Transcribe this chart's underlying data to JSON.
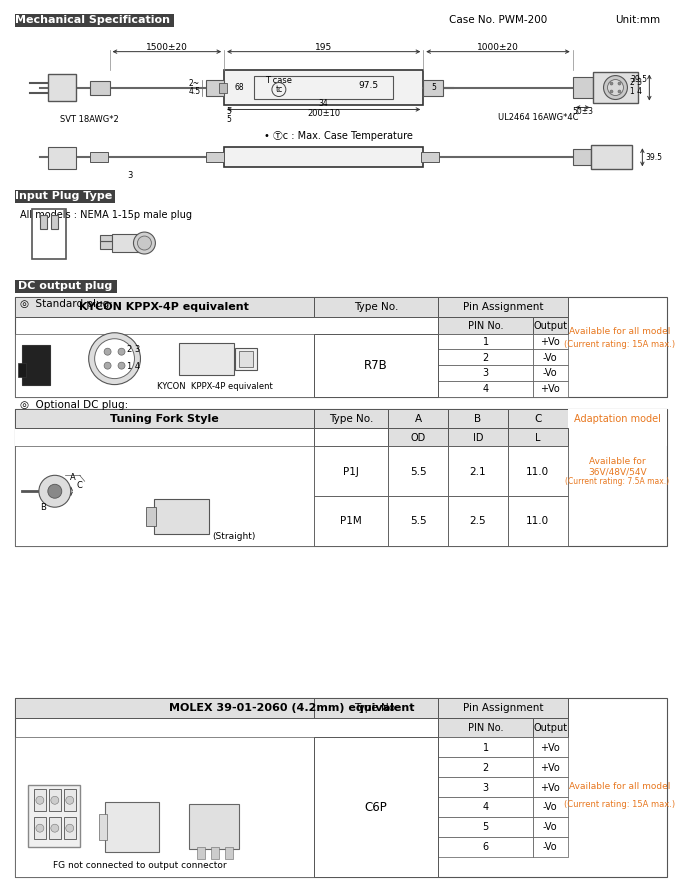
{
  "title_section1": "Mechanical Specification",
  "case_no": "Case No. PWM-200",
  "unit": "Unit:mm",
  "title_section2": "Input Plug Type",
  "input_plug_text": "All models : NEMA 1-15p male plug",
  "title_section3": "DC output plug",
  "standard_plug_label": "◎  Standard plug:",
  "optional_plug_label": "◎  Optional DC plug:",
  "kycon_header": "KYCON KPPX-4P equivalent",
  "kycon_type_no": "R7B",
  "kycon_pin_data": [
    [
      "1",
      "+Vo"
    ],
    [
      "2",
      "-Vo"
    ],
    [
      "3",
      "-Vo"
    ],
    [
      "4",
      "+Vo"
    ]
  ],
  "kycon_avail": "Available for all model",
  "kycon_current": "(Current rating: 15A max.)",
  "tuning_header": "Tuning Fork Style",
  "tuning_cols": [
    "A",
    "B",
    "C"
  ],
  "tuning_subcols": [
    "OD",
    "ID",
    "L"
  ],
  "tuning_data": [
    [
      "P1J",
      "5.5",
      "2.1",
      "11.0"
    ],
    [
      "P1M",
      "5.5",
      "2.5",
      "11.0"
    ]
  ],
  "tuning_avail": "Available for",
  "tuning_avail2": "36V/48V/54V",
  "tuning_current": "(Current rating: 7.5A max.)",
  "molex_header": "MOLEX 39-01-2060 (4.2mm) equivalent",
  "molex_pin_data": [
    [
      "1",
      "+Vo"
    ],
    [
      "2",
      "+Vo"
    ],
    [
      "3",
      "+Vo"
    ],
    [
      "4",
      "-Vo"
    ],
    [
      "5",
      "-Vo"
    ],
    [
      "6",
      "-Vo"
    ]
  ],
  "molex_type_no": "C6P",
  "molex_avail": "Available for all model",
  "molex_current": "(Current rating: 15A max.)",
  "molex_fg": "FG not connected to output connector",
  "bg_color": "#ffffff",
  "orange_text": "#e87820",
  "gray_header_bg": "#e0e0e0",
  "dark_header_bg": "#404040"
}
